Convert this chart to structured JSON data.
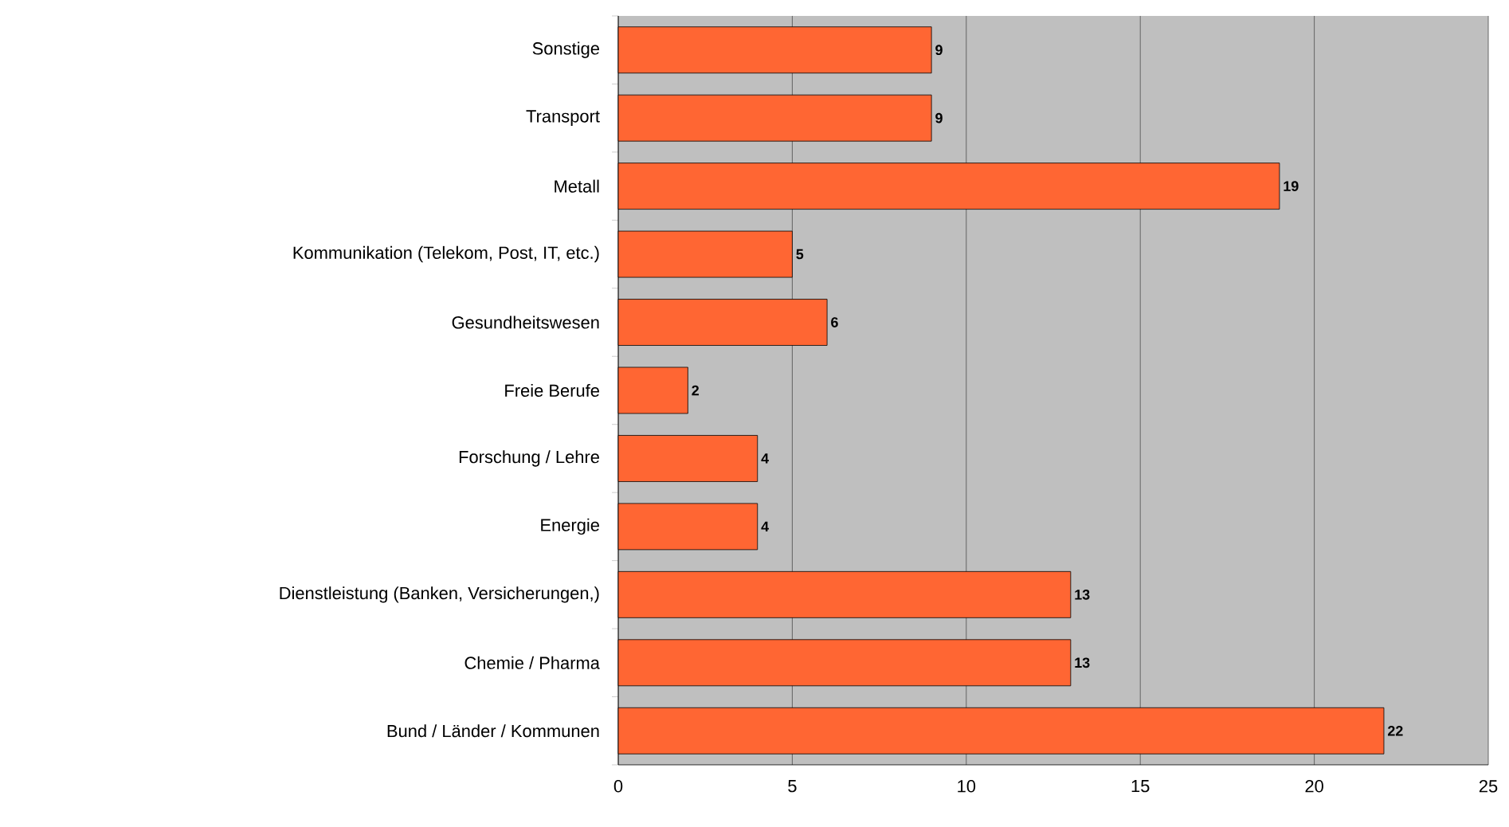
{
  "chart_data": {
    "type": "bar",
    "orientation": "horizontal",
    "categories": [
      "Sonstige",
      "Transport",
      "Metall",
      "Kommunikation (Telekom, Post, IT, etc.)",
      "Gesundheitswesen",
      "Freie Berufe",
      "Forschung / Lehre",
      "Energie",
      "Dienstleistung (Banken, Versicherungen,)",
      "Chemie / Pharma",
      "Bund / Länder / Kommunen"
    ],
    "values": [
      9,
      9,
      19,
      5,
      6,
      2,
      4,
      4,
      13,
      13,
      22
    ],
    "color": "#ff6633",
    "xlim": [
      0,
      25
    ],
    "xticks": [
      0,
      5,
      10,
      15,
      20,
      25
    ],
    "grid": "x",
    "data_labels": true
  }
}
